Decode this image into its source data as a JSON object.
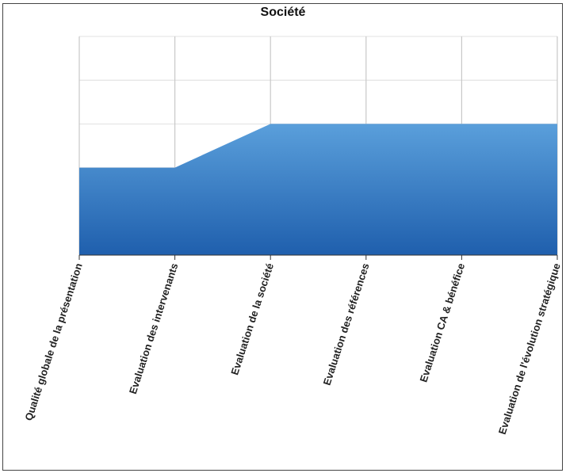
{
  "chart_data": {
    "type": "area",
    "title": "Société",
    "categories": [
      "Qualité globale de la présentation",
      "Evaluation des intervenants",
      "Evaluation de la société",
      "Evaluation des références",
      "Evaluation CA & bénéfice",
      "Evaluation de l'évolution stratégique"
    ],
    "series": [
      {
        "values": [
          2,
          2,
          3,
          3,
          3,
          3
        ]
      }
    ],
    "ylim": [
      0,
      5
    ],
    "grid": true,
    "legend": "none",
    "colors": {
      "fill_top": "#5a9fdb",
      "fill_bottom": "#1f5fad",
      "grid": "#c8c8c8",
      "axis": "#333333"
    }
  }
}
